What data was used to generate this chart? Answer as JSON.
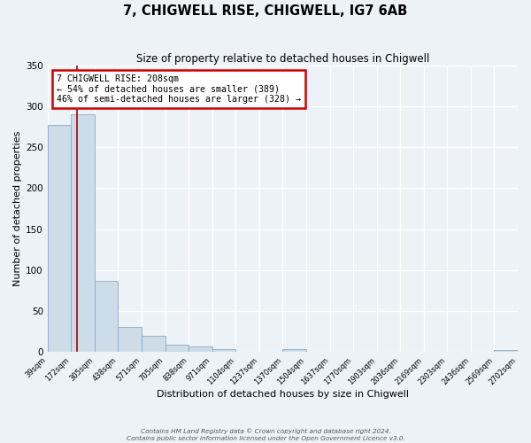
{
  "title": "7, CHIGWELL RISE, CHIGWELL, IG7 6AB",
  "subtitle": "Size of property relative to detached houses in Chigwell",
  "xlabel": "Distribution of detached houses by size in Chigwell",
  "ylabel": "Number of detached properties",
  "bin_edges": [
    39,
    172,
    305,
    438,
    571,
    705,
    838,
    971,
    1104,
    1237,
    1370,
    1504,
    1637,
    1770,
    1903,
    2036,
    2169,
    2303,
    2436,
    2569,
    2702
  ],
  "bar_heights": [
    278,
    290,
    87,
    30,
    19,
    8,
    6,
    3,
    0,
    0,
    3,
    0,
    0,
    0,
    0,
    0,
    0,
    0,
    0,
    2
  ],
  "bar_color": "#ccdce8",
  "bar_edge_color": "#88aac8",
  "ylim": [
    0,
    350
  ],
  "yticks": [
    0,
    50,
    100,
    150,
    200,
    250,
    300,
    350
  ],
  "property_size": 208,
  "annotation_title": "7 CHIGWELL RISE: 208sqm",
  "annotation_line1": "← 54% of detached houses are smaller (389)",
  "annotation_line2": "46% of semi-detached houses are larger (328) →",
  "annotation_box_color": "#ffffff",
  "annotation_box_edge_color": "#cc0000",
  "red_line_color": "#aa0000",
  "footer_line1": "Contains HM Land Registry data © Crown copyright and database right 2024.",
  "footer_line2": "Contains public sector information licensed under the Open Government Licence v3.0.",
  "background_color": "#edf2f7",
  "grid_color": "#ffffff",
  "tick_labels": [
    "39sqm",
    "172sqm",
    "305sqm",
    "438sqm",
    "571sqm",
    "705sqm",
    "838sqm",
    "971sqm",
    "1104sqm",
    "1237sqm",
    "1370sqm",
    "1504sqm",
    "1637sqm",
    "1770sqm",
    "1903sqm",
    "2036sqm",
    "2169sqm",
    "2303sqm",
    "2436sqm",
    "2569sqm",
    "2702sqm"
  ]
}
